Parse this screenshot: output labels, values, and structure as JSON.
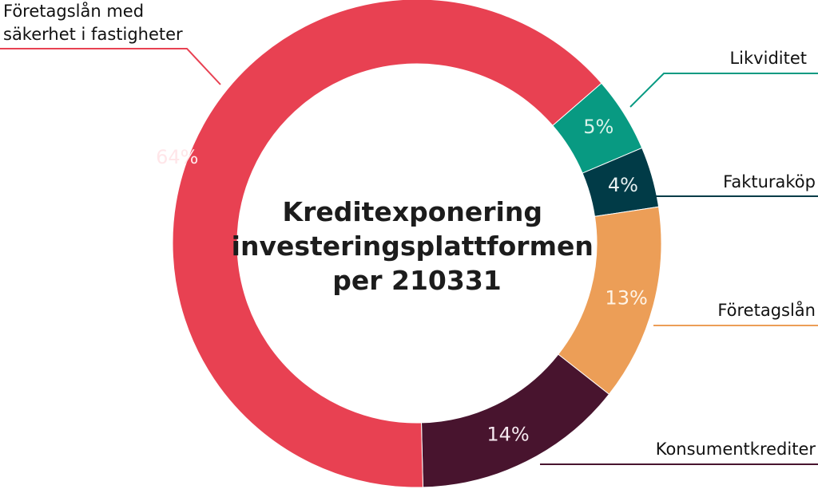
{
  "chart_data": {
    "type": "pie",
    "variant": "donut",
    "title_lines": [
      "Kreditexponering",
      "investeringsplattformen",
      "per 210331"
    ],
    "slices": [
      {
        "name": "Likviditet",
        "label": "5%",
        "value": 5,
        "color": "#089a82",
        "label_color": "#d8f2e9"
      },
      {
        "name": "Fakturaköp",
        "label": "4%",
        "value": 4,
        "color": "#013b47",
        "label_color": "#e8f1f2"
      },
      {
        "name": "Företagslån",
        "label": "13%",
        "value": 13,
        "color": "#ec9e57",
        "label_color": "#fff4e6"
      },
      {
        "name": "Konsumentkrediter",
        "label": "14%",
        "value": 14,
        "color": "#48142e",
        "label_color": "#f6e9f0"
      },
      {
        "name": "Företagslån med säkerhet i fastigheter",
        "name_lines": [
          "Företagslån med",
          "säkerhet i fastigheter"
        ],
        "label": "64%",
        "value": 64,
        "color": "#e84152",
        "label_color": "#ffe6e9"
      }
    ]
  }
}
